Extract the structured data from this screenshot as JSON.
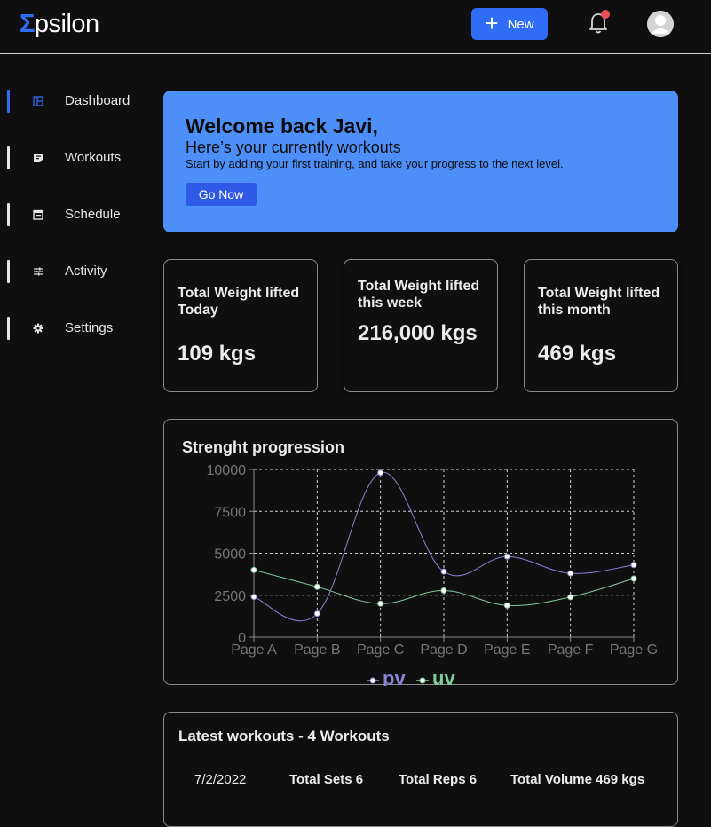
{
  "header": {
    "logo_mark": "Σ",
    "logo_text": "psilon",
    "new_label": "New"
  },
  "sidebar": {
    "items": [
      {
        "label": "Dashboard",
        "icon": "dashboard-icon",
        "active": true
      },
      {
        "label": "Workouts",
        "icon": "note-icon",
        "active": false
      },
      {
        "label": "Schedule",
        "icon": "calendar-icon",
        "active": false
      },
      {
        "label": "Activity",
        "icon": "sliders-icon",
        "active": false
      },
      {
        "label": "Settings",
        "icon": "gear-icon",
        "active": false
      }
    ]
  },
  "welcome": {
    "title": "Welcome back Javi,",
    "subtitle": "Here’s your currently workouts",
    "description": "Start by adding your first training, and take your progress to the next level.",
    "button_label": "Go Now"
  },
  "stats": [
    {
      "title": "Total Weight lifted Today",
      "value": "109 kgs"
    },
    {
      "title": "Total Weight lifted this week",
      "value": "216,000 kgs"
    },
    {
      "title": "Total Weight lifted this month",
      "value": "469 kgs"
    }
  ],
  "chart_panel": {
    "title": "Strenght progression"
  },
  "chart_data": {
    "type": "line",
    "title": "Strenght progression",
    "categories": [
      "Page A",
      "Page B",
      "Page C",
      "Page D",
      "Page E",
      "Page F",
      "Page G"
    ],
    "series": [
      {
        "name": "pv",
        "color": "#8884d8",
        "values": [
          2400,
          1398,
          9800,
          3908,
          4800,
          3800,
          4300
        ]
      },
      {
        "name": "uv",
        "color": "#82ca9d",
        "values": [
          4000,
          3000,
          2000,
          2780,
          1890,
          2390,
          3490
        ]
      }
    ],
    "yticks": [
      0,
      2500,
      5000,
      7500,
      10000
    ],
    "ylim": [
      0,
      10000
    ],
    "grid": true,
    "legend": "bottom-center"
  },
  "workouts": {
    "title": "Latest workouts - 4 Workouts",
    "rows": [
      {
        "date": "7/2/2022",
        "sets": "Total Sets 6",
        "reps": "Total Reps 6",
        "volume": "Total Volume 469 kgs"
      }
    ]
  }
}
